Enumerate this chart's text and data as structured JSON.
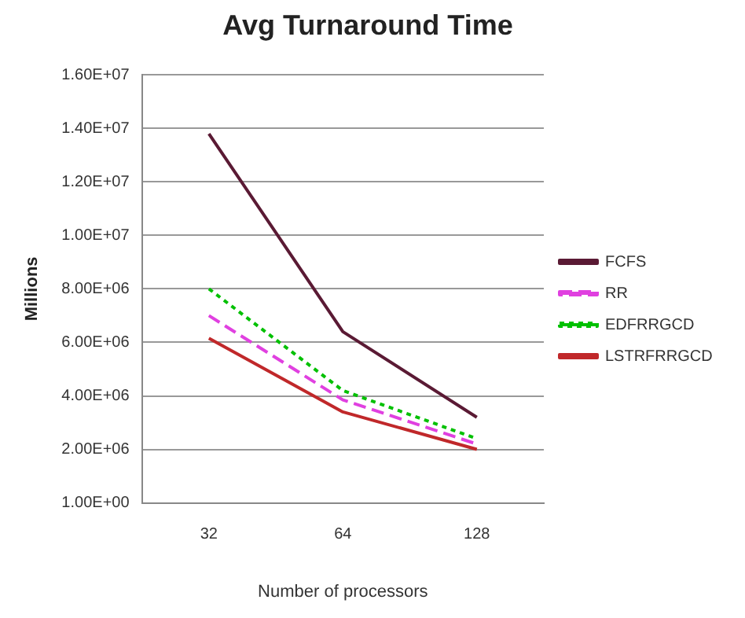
{
  "chart_data": {
    "type": "line",
    "title": "Avg Turnaround Time",
    "xlabel": "Number of processors",
    "ylabel": "Millions",
    "categories": [
      "32",
      "64",
      "128"
    ],
    "series": [
      {
        "name": "FCFS",
        "color": "#5a1a34",
        "values": [
          13800000,
          6400000,
          3200000
        ],
        "line_style": "solid"
      },
      {
        "name": "RR",
        "color": "#e040e0",
        "values": [
          7000000,
          3850000,
          2200000
        ],
        "line_style": "dashed"
      },
      {
        "name": "EDFRRGCD",
        "color": "#00c000",
        "values": [
          8000000,
          4200000,
          2400000
        ],
        "line_style": "dotted"
      },
      {
        "name": "LSTRFRRGCD",
        "color": "#c0282a",
        "values": [
          6150000,
          3400000,
          2000000
        ],
        "line_style": "solid"
      }
    ],
    "ylim": [
      1,
      16000000
    ],
    "yticks": [
      {
        "value": 1,
        "label": "1.00E+00"
      },
      {
        "value": 2000000,
        "label": "2.00E+06"
      },
      {
        "value": 4000000,
        "label": "4.00E+06"
      },
      {
        "value": 6000000,
        "label": "6.00E+06"
      },
      {
        "value": 8000000,
        "label": "8.00E+06"
      },
      {
        "value": 10000000,
        "label": "1.00E+07"
      },
      {
        "value": 12000000,
        "label": "1.20E+07"
      },
      {
        "value": 14000000,
        "label": "1.40E+07"
      },
      {
        "value": 16000000,
        "label": "1.60E+07"
      }
    ],
    "grid": "y",
    "legend": "right",
    "marker": "none"
  }
}
